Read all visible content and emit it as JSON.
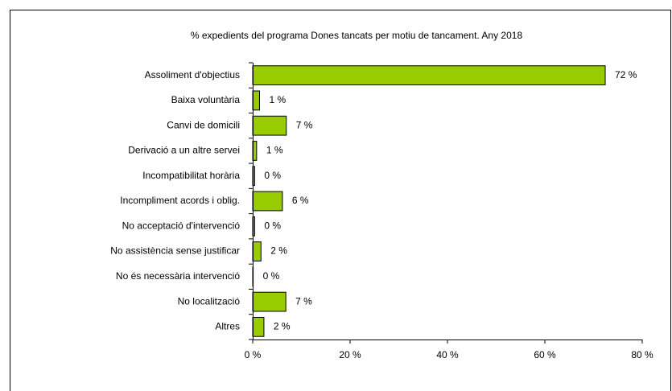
{
  "chart_data": {
    "type": "bar",
    "orientation": "horizontal",
    "title": "%  expedients del programa  Dones tancats per motiu de tancament. Any 2018",
    "categories": [
      "Assoliment d'objectius",
      "Baixa voluntària",
      "Canvi de domicili",
      "Derivació a un altre servei",
      "Incompatibilitat horària",
      "Incompliment acords i oblig.",
      "No acceptació d'intervenció",
      "No assistència sense justificar",
      "No és necessària intervenció",
      "No localització",
      "Altres"
    ],
    "values": [
      72.4,
      1.4,
      6.9,
      0.8,
      0.4,
      6.1,
      0.4,
      1.7,
      0.1,
      6.8,
      2.3
    ],
    "value_labels": [
      "72 %",
      "1 %",
      "7 %",
      "1 %",
      "0 %",
      "6 %",
      "0 %",
      "2 %",
      "0 %",
      "7 %",
      "2 %"
    ],
    "color": "#99cc00",
    "xlim": [
      0,
      80
    ],
    "xticks": [
      {
        "value": 0,
        "label": "0 %"
      },
      {
        "value": 20,
        "label": "20 %"
      },
      {
        "value": 40,
        "label": "40 %"
      },
      {
        "value": 60,
        "label": "60 %"
      },
      {
        "value": 80,
        "label": "80 %"
      }
    ]
  }
}
